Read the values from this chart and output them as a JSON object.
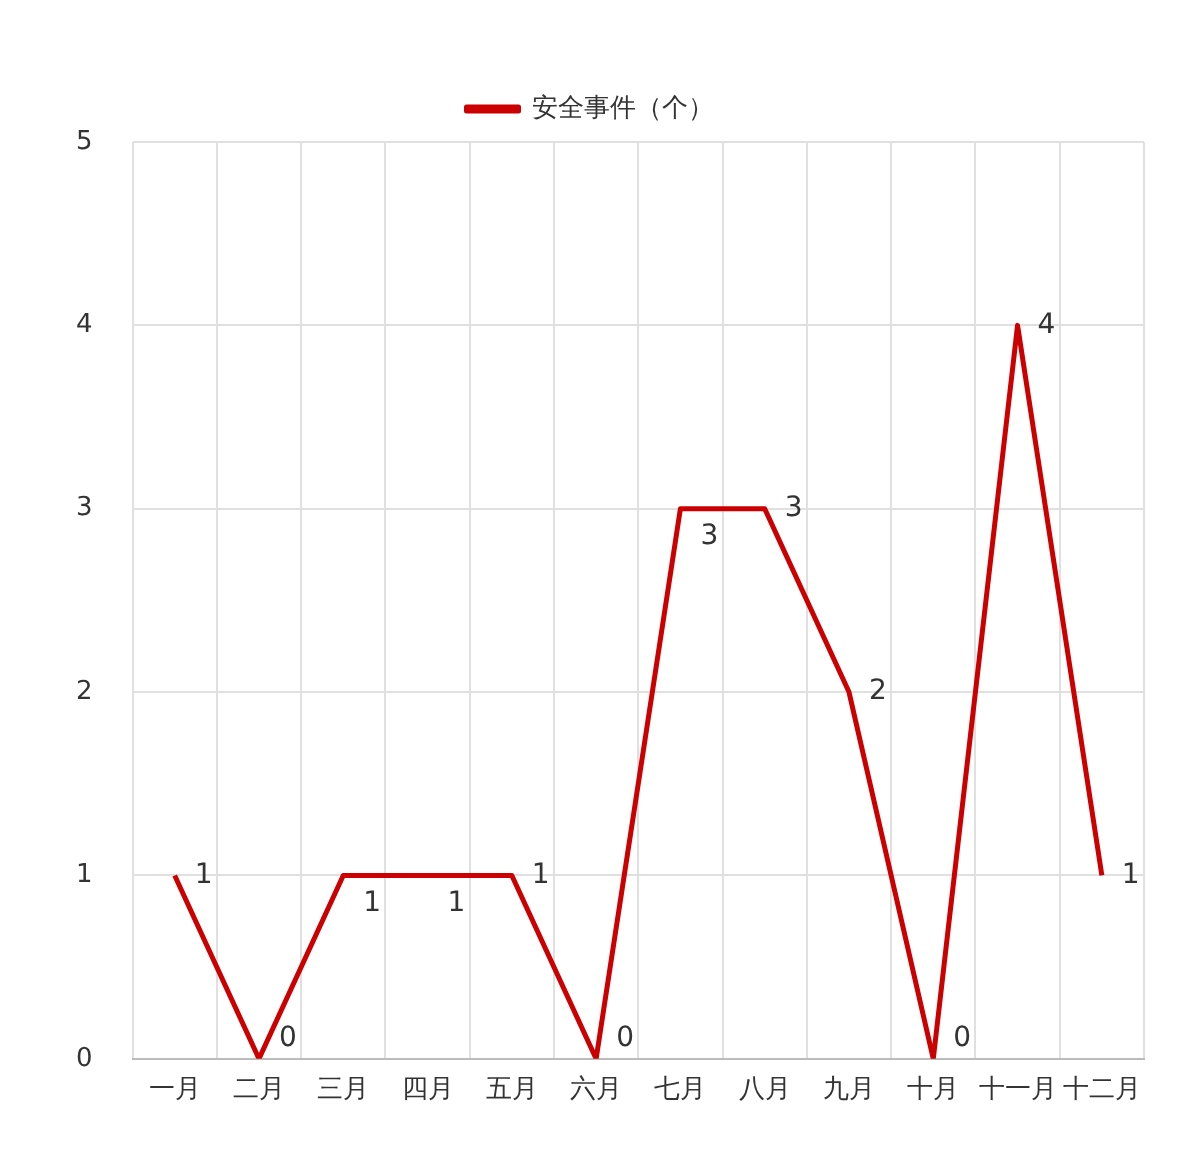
{
  "chart_data": {
    "type": "line",
    "categories": [
      "一月",
      "二月",
      "三月",
      "四月",
      "五月",
      "六月",
      "七月",
      "八月",
      "九月",
      "十月",
      "十一月",
      "十二月"
    ],
    "series": [
      {
        "name": "安全事件（个）",
        "color": "#cc0000",
        "values": [
          1,
          0,
          1,
          1,
          1,
          0,
          3,
          3,
          2,
          0,
          4,
          1
        ]
      }
    ],
    "ylim": [
      0,
      5
    ],
    "yticks": [
      0,
      1,
      2,
      3,
      4,
      5
    ],
    "grid": true,
    "legend": "top",
    "marker": "none",
    "line_style": "solid",
    "data_labels": true
  }
}
